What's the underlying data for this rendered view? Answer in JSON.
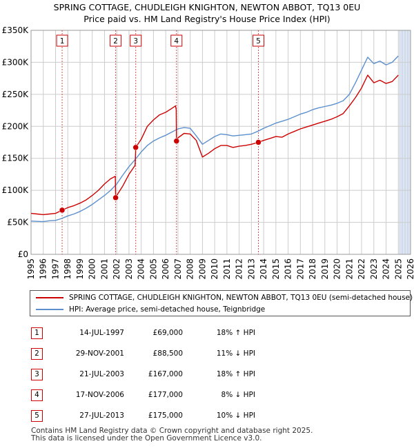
{
  "title_line1": "SPRING COTTAGE, CHUDLEIGH KNIGHTON, NEWTON ABBOT, TQ13 0EU",
  "title_line2": "Price paid vs. HM Land Registry's House Price Index (HPI)",
  "legend": {
    "series1": "SPRING COTTAGE, CHUDLEIGH KNIGHTON, NEWTON ABBOT, TQ13 0EU (semi-detached house)",
    "series2": "HPI: Average price, semi-detached house, Teignbridge"
  },
  "colors": {
    "price": "#cc0000",
    "hpi": "#5b8fcc",
    "shade": "#dde6f3",
    "grid": "#cccccc"
  },
  "transactions": [
    {
      "num": "1",
      "date": "14-JUL-1997",
      "price": "£69,000",
      "hpi": "18% ↑ HPI"
    },
    {
      "num": "2",
      "date": "29-NOV-2001",
      "price": "£88,500",
      "hpi": "11% ↓ HPI"
    },
    {
      "num": "3",
      "date": "21-JUL-2003",
      "price": "£167,000",
      "hpi": "18% ↑ HPI"
    },
    {
      "num": "4",
      "date": "17-NOV-2006",
      "price": "£177,000",
      "hpi": "8% ↓ HPI"
    },
    {
      "num": "5",
      "date": "27-JUL-2013",
      "price": "£175,000",
      "hpi": "10% ↓ HPI"
    }
  ],
  "footer_line1": "Contains HM Land Registry data © Crown copyright and database right 2025.",
  "footer_line2": "This data is licensed under the Open Government Licence v3.0.",
  "chart_data": {
    "type": "line",
    "title": "SPRING COTTAGE, CHUDLEIGH KNIGHTON, NEWTON ABBOT, TQ13 0EU",
    "subtitle": "Price paid vs. HM Land Registry's House Price Index (HPI)",
    "xlim": [
      1995,
      2026
    ],
    "ylim": [
      0,
      350000
    ],
    "x_ticks": [
      1995,
      1996,
      1997,
      1998,
      1999,
      2000,
      2001,
      2002,
      2003,
      2004,
      2005,
      2006,
      2007,
      2008,
      2009,
      2010,
      2011,
      2012,
      2013,
      2014,
      2015,
      2016,
      2017,
      2018,
      2019,
      2020,
      2021,
      2022,
      2023,
      2024,
      2025,
      2026
    ],
    "y_ticks": [
      0,
      50000,
      100000,
      150000,
      200000,
      250000,
      300000,
      350000
    ],
    "y_tick_labels": [
      "£0",
      "£50K",
      "£100K",
      "£150K",
      "£200K",
      "£250K",
      "£300K",
      "£350K"
    ],
    "grid": true,
    "legend_position": "below",
    "shaded_future_from": 2025.1,
    "sales": [
      {
        "label": "1",
        "x": 1997.54,
        "y": 69000
      },
      {
        "label": "2",
        "x": 2001.91,
        "y": 88500
      },
      {
        "label": "3",
        "x": 2003.55,
        "y": 167000
      },
      {
        "label": "4",
        "x": 2006.88,
        "y": 177000
      },
      {
        "label": "5",
        "x": 2013.57,
        "y": 175000
      }
    ],
    "series": [
      {
        "name": "SPRING COTTAGE, CHUDLEIGH KNIGHTON, NEWTON ABBOT, TQ13 0EU (semi-detached house)",
        "x": [
          1995.0,
          1995.5,
          1996.0,
          1996.5,
          1997.0,
          1997.54,
          1998.0,
          1998.5,
          1999.0,
          1999.5,
          2000.0,
          2000.5,
          2001.0,
          2001.5,
          2001.88,
          2001.91,
          2002.0,
          2002.5,
          2003.0,
          2003.5,
          2003.52,
          2003.55,
          2004.0,
          2004.5,
          2005.0,
          2005.5,
          2006.0,
          2006.5,
          2006.8,
          2006.86,
          2006.88,
          2007.0,
          2007.5,
          2008.0,
          2008.5,
          2009.0,
          2009.5,
          2010.0,
          2010.5,
          2011.0,
          2011.5,
          2012.0,
          2012.5,
          2013.0,
          2013.57,
          2014.0,
          2014.5,
          2015.0,
          2015.5,
          2016.0,
          2016.5,
          2017.0,
          2017.5,
          2018.0,
          2018.5,
          2019.0,
          2019.5,
          2020.0,
          2020.5,
          2021.0,
          2021.5,
          2022.0,
          2022.5,
          2023.0,
          2023.5,
          2024.0,
          2024.5,
          2025.0
        ],
        "y": [
          64000,
          63000,
          62000,
          63000,
          64000,
          69000,
          73000,
          76000,
          80000,
          85000,
          92000,
          100000,
          110000,
          118000,
          122000,
          88500,
          92000,
          107000,
          125000,
          139000,
          150000,
          167000,
          180000,
          200000,
          210000,
          218000,
          222000,
          228000,
          232000,
          226000,
          177000,
          182000,
          189000,
          188000,
          178000,
          152000,
          158000,
          165000,
          170000,
          170000,
          167000,
          169000,
          170000,
          172000,
          175000,
          178000,
          181000,
          184000,
          183000,
          188000,
          192000,
          196000,
          199000,
          202000,
          205000,
          208000,
          211000,
          215000,
          220000,
          232000,
          245000,
          260000,
          280000,
          268000,
          272000,
          267000,
          270000,
          280000
        ]
      },
      {
        "name": "HPI: Average price, semi-detached house, Teignbridge",
        "x": [
          1995.0,
          1995.5,
          1996.0,
          1996.5,
          1997.0,
          1997.5,
          1998.0,
          1998.5,
          1999.0,
          1999.5,
          2000.0,
          2000.5,
          2001.0,
          2001.5,
          2002.0,
          2002.5,
          2003.0,
          2003.5,
          2004.0,
          2004.5,
          2005.0,
          2005.5,
          2006.0,
          2006.5,
          2007.0,
          2007.5,
          2008.0,
          2008.5,
          2009.0,
          2009.5,
          2010.0,
          2010.5,
          2011.0,
          2011.5,
          2012.0,
          2012.5,
          2013.0,
          2013.5,
          2014.0,
          2014.5,
          2015.0,
          2015.5,
          2016.0,
          2016.5,
          2017.0,
          2017.5,
          2018.0,
          2018.5,
          2019.0,
          2019.5,
          2020.0,
          2020.5,
          2021.0,
          2021.5,
          2022.0,
          2022.5,
          2023.0,
          2023.5,
          2024.0,
          2024.5,
          2025.0
        ],
        "y": [
          52000,
          51500,
          51000,
          52500,
          53000,
          56000,
          60000,
          63000,
          67000,
          72000,
          78000,
          85000,
          92000,
          100000,
          110000,
          124000,
          137000,
          148000,
          160000,
          170000,
          177000,
          182000,
          186000,
          191000,
          196000,
          198000,
          197000,
          185000,
          172000,
          178000,
          184000,
          188000,
          187000,
          185000,
          186000,
          187000,
          188000,
          192000,
          197000,
          201000,
          205000,
          208000,
          211000,
          215000,
          219000,
          222000,
          226000,
          229000,
          231000,
          233000,
          236000,
          240000,
          250000,
          268000,
          288000,
          308000,
          298000,
          302000,
          296000,
          300000,
          310000
        ]
      }
    ]
  }
}
